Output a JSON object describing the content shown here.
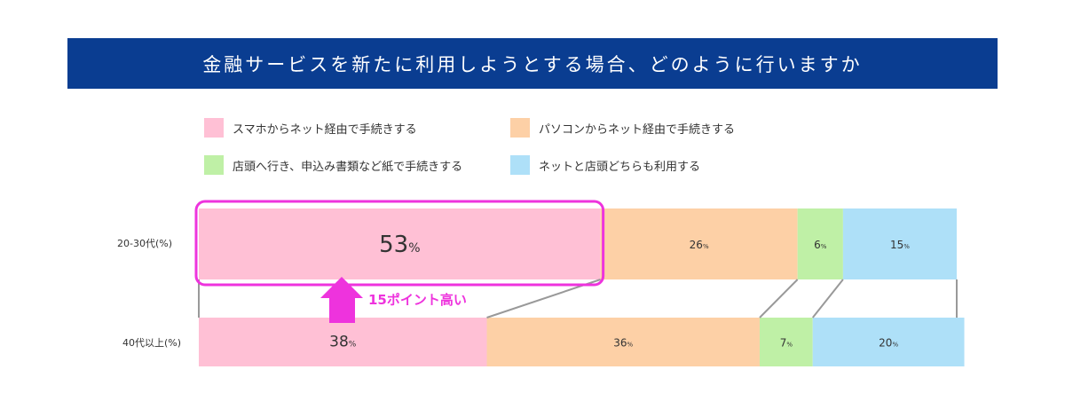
{
  "title": "金融サービスを新たに利用しようとする場合、どのように行いますか",
  "legend": [
    {
      "label": "スマホからネット経由で手続きする",
      "color": "#ffc0d5"
    },
    {
      "label": "パソコンからネット経由で手続きする",
      "color": "#fdd0a6"
    },
    {
      "label": "店頭へ行き、申込み書類など紙で手続きする",
      "color": "#bff0a6"
    },
    {
      "label": "ネットと店頭どちらも利用する",
      "color": "#aee0f8"
    }
  ],
  "annotation": {
    "text": "15ポイント高い",
    "color": "#ee33dd"
  },
  "chart_data": {
    "type": "bar",
    "stacked": true,
    "orientation": "horizontal",
    "categories": [
      "20-30代(%)",
      "40代以上(%)"
    ],
    "series": [
      {
        "name": "スマホからネット経由で手続きする",
        "values": [
          53,
          38
        ]
      },
      {
        "name": "パソコンからネット経由で手続きする",
        "values": [
          26,
          36
        ]
      },
      {
        "name": "店頭へ行き、申込み書類など紙で手続きする",
        "values": [
          6,
          7
        ]
      },
      {
        "name": "ネットと店頭どちらも利用する",
        "values": [
          15,
          20
        ]
      }
    ],
    "value_labels": [
      [
        "53%",
        "26%",
        "6%",
        "15%"
      ],
      [
        "38%",
        "36%",
        "7%",
        "20%"
      ]
    ],
    "title": "金融サービスを新たに利用しようとする場合、どのように行いますか",
    "xlim": [
      0,
      100
    ]
  }
}
